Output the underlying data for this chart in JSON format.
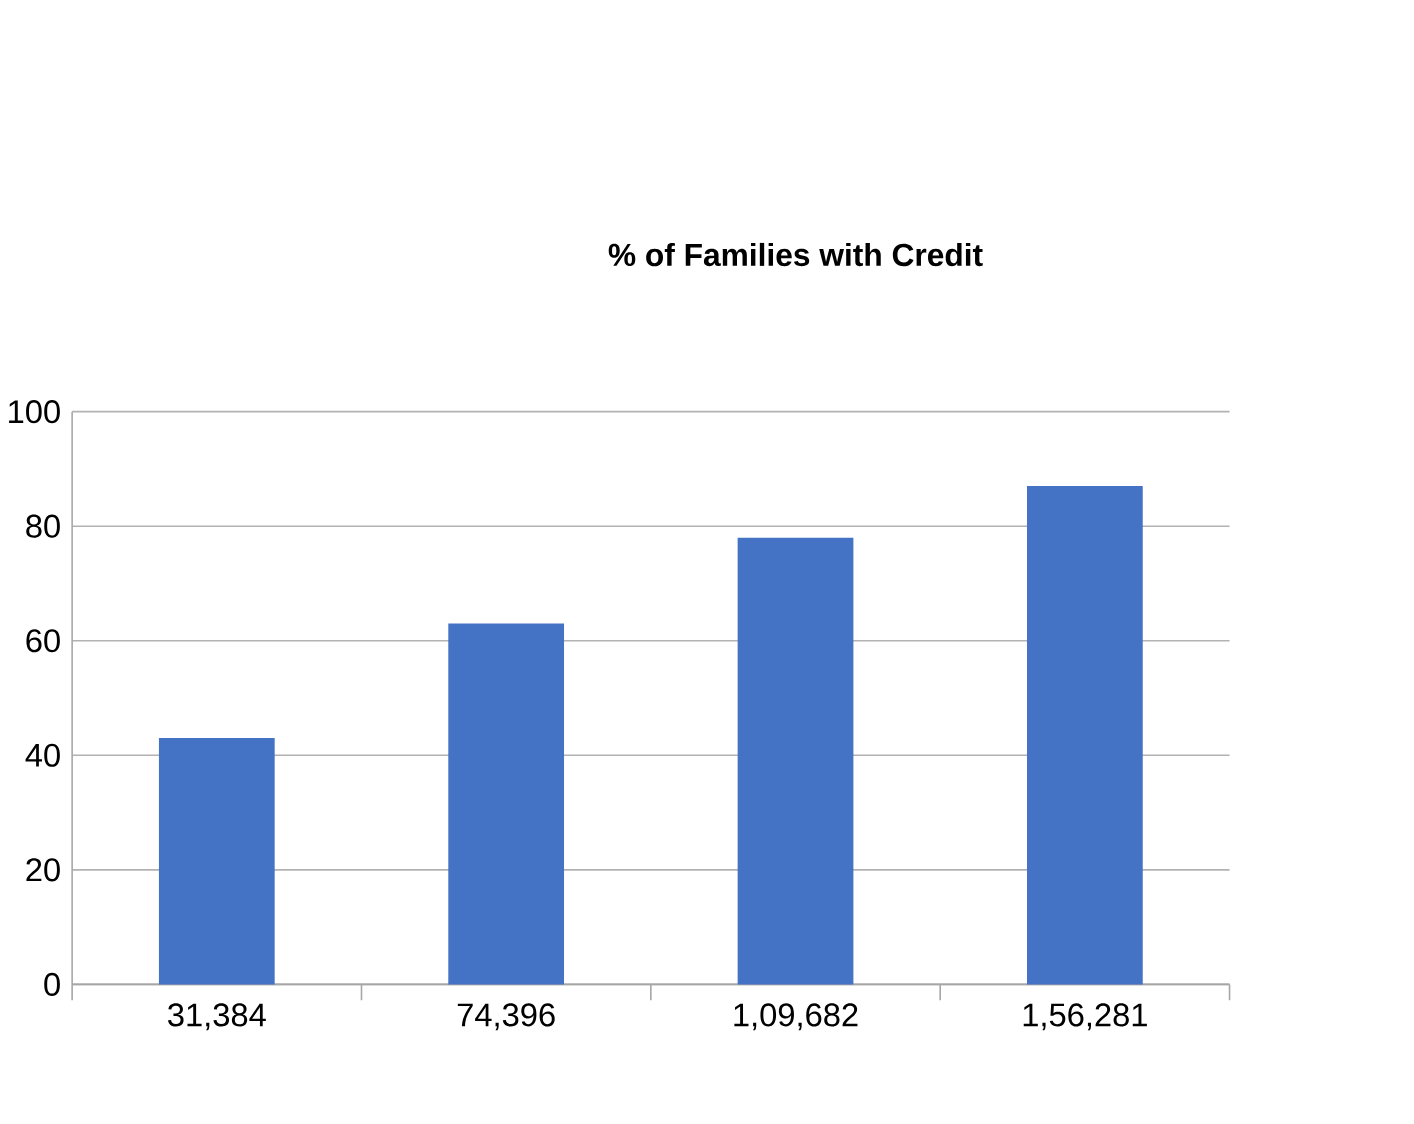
{
  "chart_data": {
    "type": "bar",
    "title": "% of Families with Credit",
    "categories": [
      "31,384",
      "74,396",
      "1,09,682",
      "1,56,281"
    ],
    "values": [
      43,
      63,
      78,
      87
    ],
    "color": "#4472c4",
    "ylim": [
      0,
      100
    ],
    "yticks": [
      0,
      20,
      40,
      60,
      80,
      100
    ],
    "grid": "y"
  }
}
